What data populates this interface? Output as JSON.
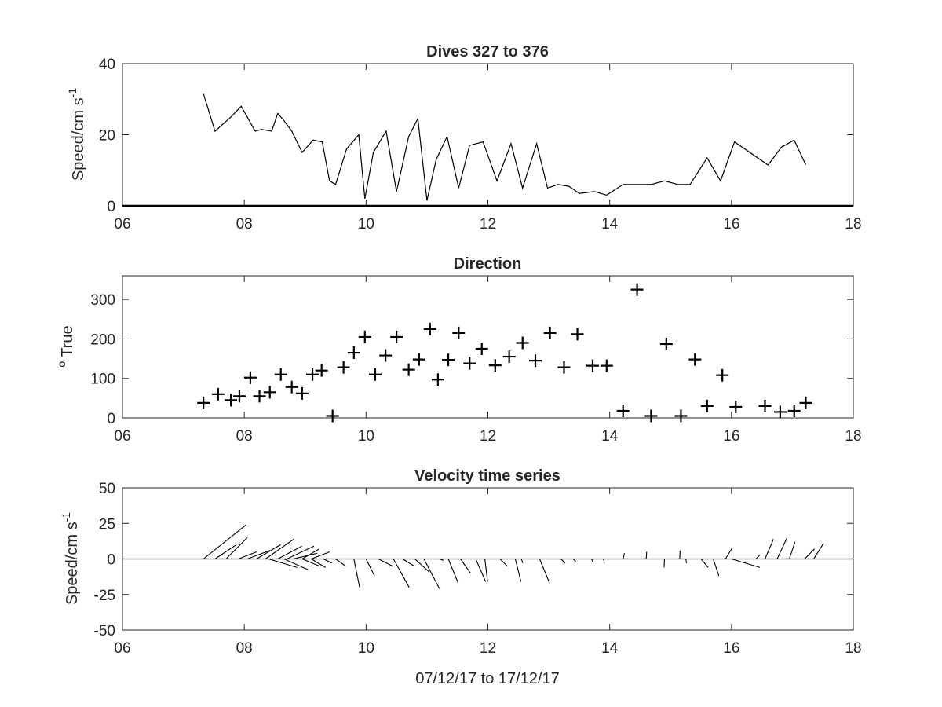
{
  "figure": {
    "xlabel": "07/12/17 to 17/12/17"
  },
  "chart_data": [
    {
      "type": "line",
      "title": "Dives 327 to 376",
      "xlabel": "",
      "ylabel": "Speed/cm s",
      "ylabel_superscript": "-1",
      "xlim": [
        6,
        18
      ],
      "ylim": [
        0,
        40
      ],
      "xticks": [
        "06",
        "08",
        "10",
        "12",
        "14",
        "16",
        "18"
      ],
      "yticks": [
        "0",
        "20",
        "40"
      ],
      "line_color": "#000000",
      "grid": false,
      "x": [
        7.33,
        7.52,
        7.78,
        7.95,
        8.18,
        8.28,
        8.45,
        8.55,
        8.65,
        8.78,
        8.95,
        9.13,
        9.28,
        9.4,
        9.5,
        9.68,
        9.88,
        9.98,
        10.12,
        10.33,
        10.5,
        10.7,
        10.85,
        11.0,
        11.15,
        11.33,
        11.52,
        11.7,
        11.92,
        12.15,
        12.38,
        12.57,
        12.8,
        12.98,
        13.15,
        13.33,
        13.5,
        13.75,
        13.95,
        14.22,
        14.45,
        14.68,
        14.9,
        15.12,
        15.32,
        15.6,
        15.82,
        16.05,
        16.6,
        16.82,
        17.03,
        17.22
      ],
      "y": [
        31.5,
        21,
        25,
        28,
        21,
        21.5,
        21,
        26,
        24,
        21,
        15,
        18.5,
        18,
        7,
        6,
        16,
        20,
        2,
        15,
        21,
        4,
        19.5,
        24.5,
        1.5,
        13,
        19.5,
        5,
        17,
        18,
        7,
        17.5,
        5,
        17.5,
        5,
        6,
        5.5,
        3.5,
        4,
        3,
        6,
        6,
        6,
        7,
        6,
        6,
        13.5,
        7,
        18,
        11.5,
        16.5,
        18.5,
        11.5
      ]
    },
    {
      "type": "scatter",
      "title": "Direction",
      "xlabel": "",
      "ylabel": "True",
      "ylabel_prefix": "o",
      "xlim": [
        6,
        18
      ],
      "ylim": [
        0,
        360
      ],
      "xticks": [
        "06",
        "08",
        "10",
        "12",
        "14",
        "16",
        "18"
      ],
      "yticks": [
        "0",
        "100",
        "200",
        "300"
      ],
      "marker": "+",
      "marker_color": "#000000",
      "grid": false,
      "x": [
        7.33,
        7.57,
        7.78,
        7.92,
        8.1,
        8.25,
        8.42,
        8.6,
        8.78,
        8.95,
        9.12,
        9.27,
        9.45,
        9.63,
        9.8,
        9.98,
        10.15,
        10.32,
        10.5,
        10.7,
        10.87,
        11.05,
        11.18,
        11.35,
        11.52,
        11.7,
        11.9,
        12.12,
        12.35,
        12.57,
        12.78,
        13.02,
        13.25,
        13.47,
        13.72,
        13.95,
        14.22,
        14.45,
        14.68,
        14.93,
        15.17,
        15.4,
        15.6,
        15.85,
        16.07,
        16.55,
        16.8,
        17.03,
        17.22
      ],
      "y": [
        38,
        60,
        45,
        55,
        102,
        55,
        65,
        110,
        78,
        62,
        110,
        120,
        5,
        128,
        165,
        205,
        110,
        158,
        205,
        122,
        148,
        225,
        97,
        147,
        215,
        138,
        175,
        133,
        155,
        190,
        145,
        215,
        128,
        212,
        132,
        132,
        18,
        325,
        5,
        187,
        5,
        148,
        30,
        108,
        28,
        30,
        15,
        18,
        38
      ]
    },
    {
      "type": "line",
      "subtype": "velocity-stick-plot",
      "title": "Velocity time series",
      "xlabel": "",
      "ylabel": "Speed/cm s",
      "ylabel_superscript": "-1",
      "xlim": [
        6,
        18
      ],
      "ylim": [
        -50,
        50
      ],
      "xticks": [
        "06",
        "08",
        "10",
        "12",
        "14",
        "16",
        "18"
      ],
      "yticks": [
        "-50",
        "-25",
        "0",
        "25",
        "50"
      ],
      "baseline_y": 0,
      "stick_color": "#000000",
      "grid": false,
      "sticks": [
        {
          "x": 7.33,
          "u": 30,
          "v": 24
        },
        {
          "x": 7.52,
          "u": 15,
          "v": 10
        },
        {
          "x": 7.7,
          "u": 15,
          "v": 15
        },
        {
          "x": 7.9,
          "u": 13,
          "v": 5
        },
        {
          "x": 8.05,
          "u": 16,
          "v": 6
        },
        {
          "x": 8.2,
          "u": 17,
          "v": 10
        },
        {
          "x": 8.35,
          "u": 20,
          "v": 14
        },
        {
          "x": 8.55,
          "u": 17,
          "v": 9
        },
        {
          "x": 8.7,
          "u": 19,
          "v": 9
        },
        {
          "x": 8.8,
          "u": 17,
          "v": 4
        },
        {
          "x": 8.95,
          "u": 12,
          "v": 7
        },
        {
          "x": 9.1,
          "u": 13,
          "v": 5
        },
        {
          "x": 8.4,
          "u": 20,
          "v": -6
        },
        {
          "x": 8.65,
          "u": 18,
          "v": -8
        },
        {
          "x": 8.95,
          "u": 12,
          "v": -5
        },
        {
          "x": 9.1,
          "u": 10,
          "v": -6
        },
        {
          "x": 9.3,
          "u": 6,
          "v": -3
        },
        {
          "x": 9.5,
          "u": 7,
          "v": -5
        },
        {
          "x": 9.8,
          "u": 4,
          "v": -20
        },
        {
          "x": 10.0,
          "u": 6,
          "v": -12
        },
        {
          "x": 10.2,
          "u": 10,
          "v": -5
        },
        {
          "x": 10.45,
          "u": 11,
          "v": -20
        },
        {
          "x": 10.6,
          "u": 8,
          "v": -5
        },
        {
          "x": 10.8,
          "u": 10,
          "v": -9
        },
        {
          "x": 10.95,
          "u": 11,
          "v": -21
        },
        {
          "x": 11.2,
          "u": 3,
          "v": -1
        },
        {
          "x": 11.35,
          "u": 7,
          "v": -17
        },
        {
          "x": 11.55,
          "u": 7,
          "v": -10
        },
        {
          "x": 11.8,
          "u": 7,
          "v": -16
        },
        {
          "x": 11.95,
          "u": 2,
          "v": -16
        },
        {
          "x": 12.2,
          "u": 5,
          "v": -5
        },
        {
          "x": 12.45,
          "u": 4,
          "v": -16
        },
        {
          "x": 12.55,
          "u": 1,
          "v": -3
        },
        {
          "x": 12.85,
          "u": 7,
          "v": -17
        },
        {
          "x": 13.2,
          "u": 3,
          "v": -3
        },
        {
          "x": 13.4,
          "u": 2,
          "v": -2
        },
        {
          "x": 13.7,
          "u": 1,
          "v": -2
        },
        {
          "x": 13.9,
          "u": 0.5,
          "v": -3
        },
        {
          "x": 14.22,
          "u": 1,
          "v": 4
        },
        {
          "x": 14.6,
          "u": 0.3,
          "v": 5
        },
        {
          "x": 14.9,
          "u": -0.3,
          "v": -6
        },
        {
          "x": 15.15,
          "u": 0.3,
          "v": 6
        },
        {
          "x": 15.25,
          "u": 0.5,
          "v": -3
        },
        {
          "x": 15.5,
          "u": 5,
          "v": -6
        },
        {
          "x": 15.7,
          "u": 4,
          "v": -12
        },
        {
          "x": 15.9,
          "u": 5,
          "v": 8
        },
        {
          "x": 16.0,
          "u": 20,
          "v": -6
        },
        {
          "x": 16.4,
          "u": 3,
          "v": 3
        },
        {
          "x": 16.55,
          "u": 6,
          "v": 14
        },
        {
          "x": 16.75,
          "u": 7,
          "v": 15
        },
        {
          "x": 16.95,
          "u": 4,
          "v": 12
        },
        {
          "x": 17.2,
          "u": 7,
          "v": 7
        },
        {
          "x": 17.35,
          "u": 7,
          "v": 11
        }
      ]
    }
  ]
}
